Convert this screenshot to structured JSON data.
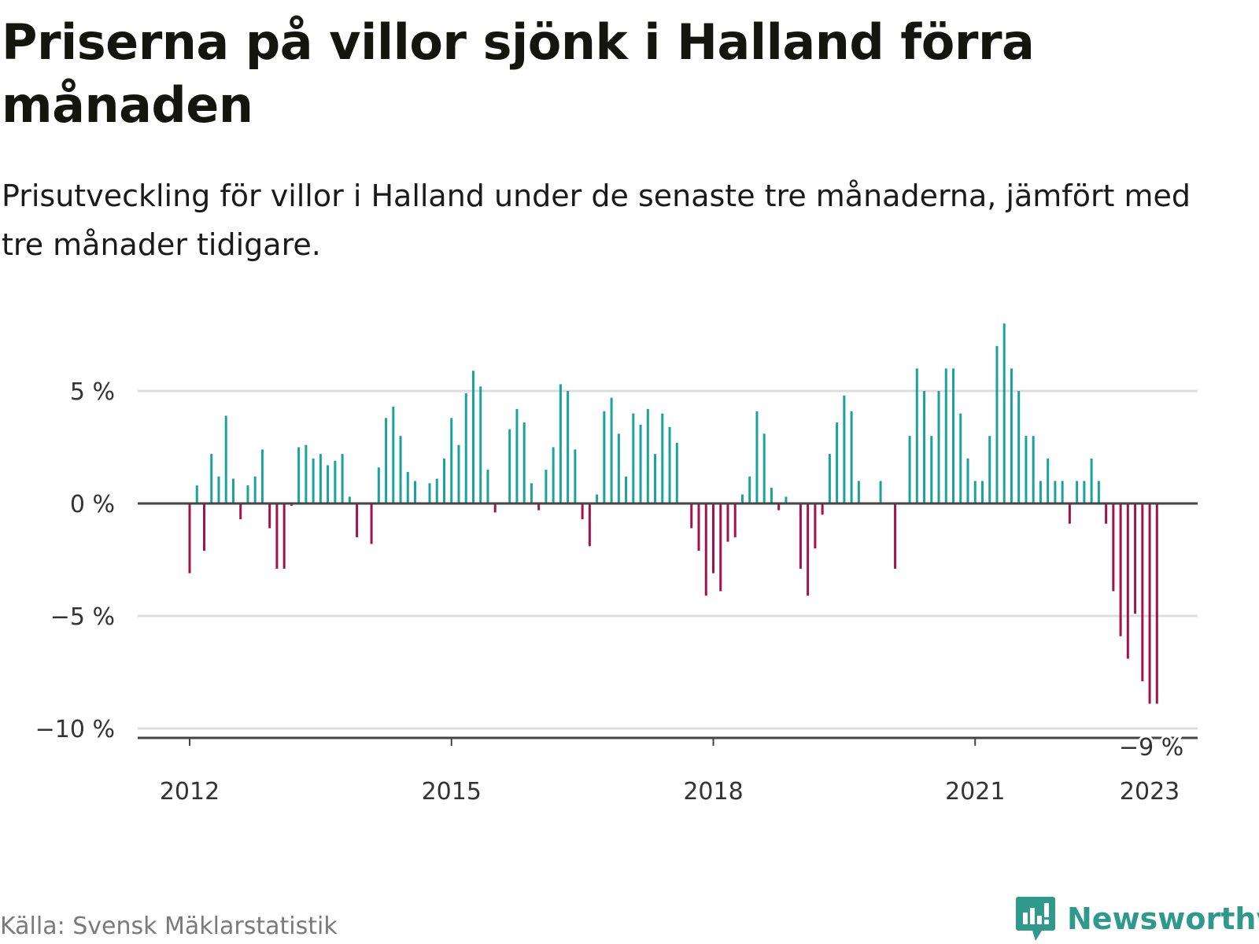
{
  "title": "Priserna på villor sjönk i Halland förra månaden",
  "subtitle": "Prisutveckling för villor i Halland under de senaste tre månaderna, jämfört med tre månader tidigare.",
  "source": "Källa: Svensk Mäklarstatistik",
  "brand": "Newsworthy",
  "colors": {
    "positive": "#1aa39a",
    "negative": "#a3134a",
    "grid": "#dddddd",
    "zero_line": "#444444",
    "brand": "#2f9a8c"
  },
  "chart_data": {
    "type": "bar",
    "title": "Priserna på villor sjönk i Halland förra månaden",
    "xlabel": "",
    "ylabel": "",
    "ylim": [
      -10.5,
      8
    ],
    "grid": true,
    "y_ticks": [
      {
        "value": 5,
        "label": "5 %"
      },
      {
        "value": 0,
        "label": "0 %"
      },
      {
        "value": -5,
        "label": "−5 %"
      },
      {
        "value": -10,
        "label": "−10 %"
      }
    ],
    "x_ticks": [
      {
        "index": 0,
        "label": "2012"
      },
      {
        "index": 36,
        "label": "2015"
      },
      {
        "index": 72,
        "label": "2018"
      },
      {
        "index": 108,
        "label": "2021"
      },
      {
        "index": 132,
        "label": "2023"
      }
    ],
    "annotation": {
      "index": 132,
      "label": "−9 %"
    },
    "start": "2012-01",
    "values": [
      -3.1,
      0.8,
      -2.1,
      2.2,
      1.2,
      3.9,
      1.1,
      -0.7,
      0.8,
      1.2,
      2.4,
      -1.1,
      -2.9,
      -2.9,
      -0.1,
      2.5,
      2.6,
      2.0,
      2.2,
      1.7,
      1.9,
      2.2,
      0.3,
      -1.5,
      0.0,
      -1.8,
      1.6,
      3.8,
      4.3,
      3.0,
      1.4,
      1.0,
      0.0,
      0.9,
      1.1,
      2.0,
      3.8,
      2.6,
      4.9,
      5.9,
      5.2,
      1.5,
      -0.4,
      0.0,
      3.3,
      4.2,
      3.6,
      0.9,
      -0.3,
      1.5,
      2.5,
      5.3,
      5.0,
      2.4,
      -0.7,
      -1.9,
      0.4,
      4.1,
      4.7,
      3.1,
      1.2,
      4.0,
      3.5,
      4.2,
      2.2,
      4.0,
      3.4,
      2.7,
      0.0,
      -1.1,
      -2.1,
      -4.1,
      -3.1,
      -3.9,
      -1.7,
      -1.5,
      0.4,
      1.2,
      4.1,
      3.1,
      0.7,
      -0.3,
      0.3,
      0.0,
      -2.9,
      -4.1,
      -2.0,
      -0.5,
      2.2,
      3.6,
      4.8,
      4.1,
      1.0,
      0.0,
      0.0,
      1.0,
      0.0,
      -2.9,
      0.0,
      3.0,
      6.0,
      5.0,
      3.0,
      5.0,
      6.0,
      6.0,
      4.0,
      2.0,
      1.0,
      1.0,
      3.0,
      7.0,
      8.0,
      6.0,
      5.0,
      3.0,
      3.0,
      1.0,
      2.0,
      1.0,
      1.0,
      -0.9,
      1.0,
      1.0,
      2.0,
      1.0,
      -0.9,
      -3.9,
      -5.9,
      -6.9,
      -4.9,
      -7.9,
      -8.9,
      -8.9
    ]
  }
}
